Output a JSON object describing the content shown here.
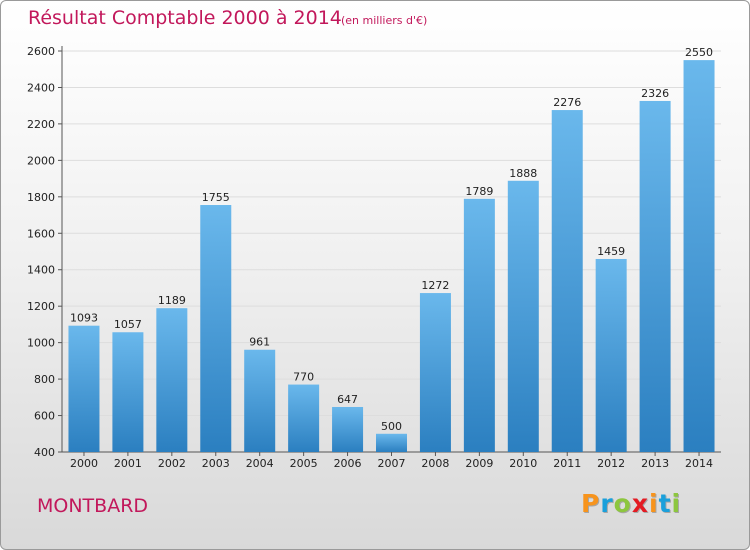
{
  "title": "Résultat Comptable 2000 à 2014",
  "subtitle": "(en milliers d'€)",
  "commune": "MONTBARD",
  "logo": {
    "letters": [
      "P",
      "r",
      "o",
      "x",
      "i",
      "t",
      "i"
    ],
    "colors": [
      "#f7941d",
      "#1aa0db",
      "#8dc63f",
      "#e31b23",
      "#f7941d",
      "#1aa0db",
      "#8dc63f"
    ]
  },
  "colors": {
    "bar_top": "#6ab8ec",
    "bar_bottom": "#2b7fc0",
    "title": "#c2185b"
  },
  "chart_data": {
    "type": "bar",
    "categories": [
      "2000",
      "2001",
      "2002",
      "2003",
      "2004",
      "2005",
      "2006",
      "2007",
      "2008",
      "2009",
      "2010",
      "2011",
      "2012",
      "2013",
      "2014"
    ],
    "values": [
      1093,
      1057,
      1189,
      1755,
      961,
      770,
      647,
      500,
      1272,
      1789,
      1888,
      2276,
      1459,
      2326,
      2550
    ],
    "yticks": [
      400,
      600,
      800,
      1000,
      1200,
      1400,
      1600,
      1800,
      2000,
      2200,
      2400,
      2600
    ],
    "ylim": [
      400,
      2600
    ],
    "grid": true
  }
}
